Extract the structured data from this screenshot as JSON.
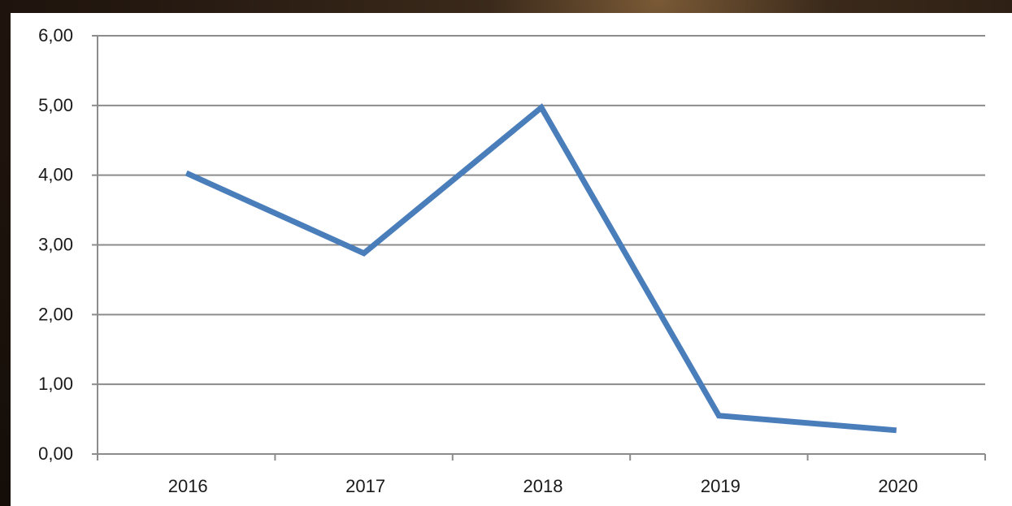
{
  "chart_data": {
    "type": "line",
    "categories": [
      "2016",
      "2017",
      "2018",
      "2019",
      "2020"
    ],
    "series": [
      {
        "values": [
          4.03,
          2.88,
          4.97,
          0.55,
          0.34
        ]
      }
    ],
    "y_tick_labels": [
      "0,00",
      "1,00",
      "2,00",
      "3,00",
      "4,00",
      "5,00",
      "6,00"
    ],
    "ylim": [
      0,
      6
    ],
    "grid": true,
    "line_color": "#4a7ebb"
  }
}
